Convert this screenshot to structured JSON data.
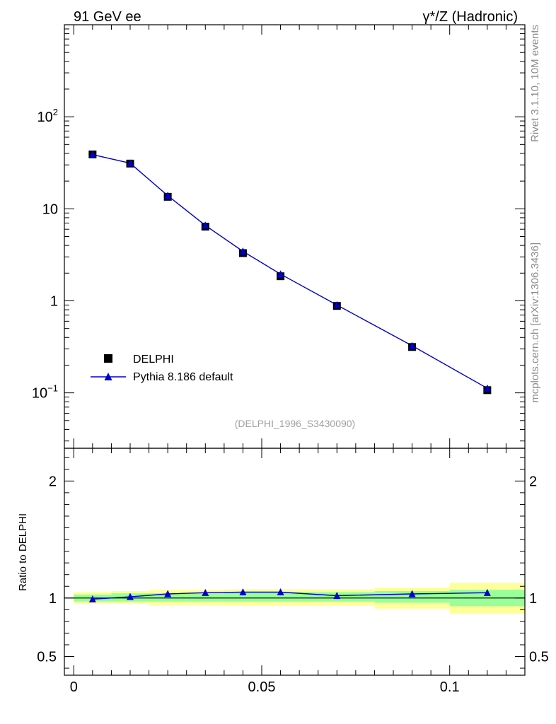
{
  "header": {
    "left": "91 GeV ee",
    "right": "γ*/Z (Hadronic)"
  },
  "side_labels": {
    "top": "Rivet 3.1.10,  10M events",
    "bottom": "mcplots.cern.ch [arXiv:1306.3436]"
  },
  "watermark": "(DELPHI_1996_S3430090)",
  "legend": {
    "data_label": "DELPHI",
    "mc_label": "Pythia 8.186 default"
  },
  "ratio_ylabel": "Ratio to DELPHI",
  "colors": {
    "data": "#000000",
    "mc": "#0000cc",
    "band_inner": "#99ff99",
    "band_outer": "#ffff99"
  },
  "chart_data": [
    {
      "type": "scatter",
      "yscale": "log",
      "xlim": [
        -0.0025,
        0.12
      ],
      "ylim": [
        0.025,
        1000
      ],
      "yticks": [
        {
          "value": 0.1,
          "base": "10",
          "exp": "−1"
        },
        {
          "value": 1,
          "label": "1"
        },
        {
          "value": 10,
          "label": "10"
        },
        {
          "value": 100,
          "base": "10",
          "exp": "2"
        }
      ],
      "series": [
        {
          "name": "DELPHI",
          "kind": "data",
          "x": [
            0.005,
            0.015,
            0.025,
            0.035,
            0.045,
            0.055,
            0.07,
            0.09,
            0.11
          ],
          "y": [
            39.0,
            31.0,
            13.5,
            6.4,
            3.3,
            1.85,
            0.88,
            0.315,
            0.107
          ]
        },
        {
          "name": "Pythia 8.186 default",
          "kind": "mc",
          "x": [
            0.005,
            0.015,
            0.025,
            0.035,
            0.045,
            0.055,
            0.07,
            0.09,
            0.11
          ],
          "y": [
            38.8,
            31.3,
            13.9,
            6.6,
            3.45,
            1.95,
            0.9,
            0.325,
            0.112
          ]
        }
      ]
    },
    {
      "type": "line",
      "ylabel": "Ratio to DELPHI",
      "xlim": [
        -0.0025,
        0.12
      ],
      "ylim": [
        0.34,
        2.28
      ],
      "xticks": [
        {
          "value": 0,
          "label": "0"
        },
        {
          "value": 0.05,
          "label": "0.05"
        },
        {
          "value": 0.1,
          "label": "0.1"
        }
      ],
      "yticks": [
        {
          "value": 0.5,
          "label": "0.5"
        },
        {
          "value": 1,
          "label": "1"
        },
        {
          "value": 2,
          "label": "2"
        }
      ],
      "bins": [
        {
          "lo": 0.0,
          "hi": 0.01,
          "inner": [
            0.97,
            1.03
          ],
          "outer": [
            0.95,
            1.05
          ]
        },
        {
          "lo": 0.01,
          "hi": 0.02,
          "inner": [
            0.97,
            1.04
          ],
          "outer": [
            0.95,
            1.06
          ]
        },
        {
          "lo": 0.02,
          "hi": 0.03,
          "inner": [
            0.97,
            1.04
          ],
          "outer": [
            0.94,
            1.07
          ]
        },
        {
          "lo": 0.03,
          "hi": 0.04,
          "inner": [
            0.97,
            1.04
          ],
          "outer": [
            0.94,
            1.07
          ]
        },
        {
          "lo": 0.04,
          "hi": 0.05,
          "inner": [
            0.97,
            1.05
          ],
          "outer": [
            0.935,
            1.075
          ]
        },
        {
          "lo": 0.05,
          "hi": 0.06,
          "inner": [
            0.97,
            1.05
          ],
          "outer": [
            0.935,
            1.075
          ]
        },
        {
          "lo": 0.06,
          "hi": 0.08,
          "inner": [
            0.97,
            1.05
          ],
          "outer": [
            0.935,
            1.075
          ]
        },
        {
          "lo": 0.08,
          "hi": 0.1,
          "inner": [
            0.96,
            1.06
          ],
          "outer": [
            0.91,
            1.09
          ]
        },
        {
          "lo": 0.1,
          "hi": 0.12,
          "inner": [
            0.93,
            1.07
          ],
          "outer": [
            0.87,
            1.13
          ]
        }
      ],
      "series": [
        {
          "name": "Pythia 8.186 default",
          "x": [
            0.005,
            0.015,
            0.025,
            0.035,
            0.045,
            0.055,
            0.07,
            0.09,
            0.11
          ],
          "y": [
            0.99,
            1.01,
            1.035,
            1.045,
            1.05,
            1.05,
            1.02,
            1.035,
            1.045
          ]
        }
      ]
    }
  ]
}
